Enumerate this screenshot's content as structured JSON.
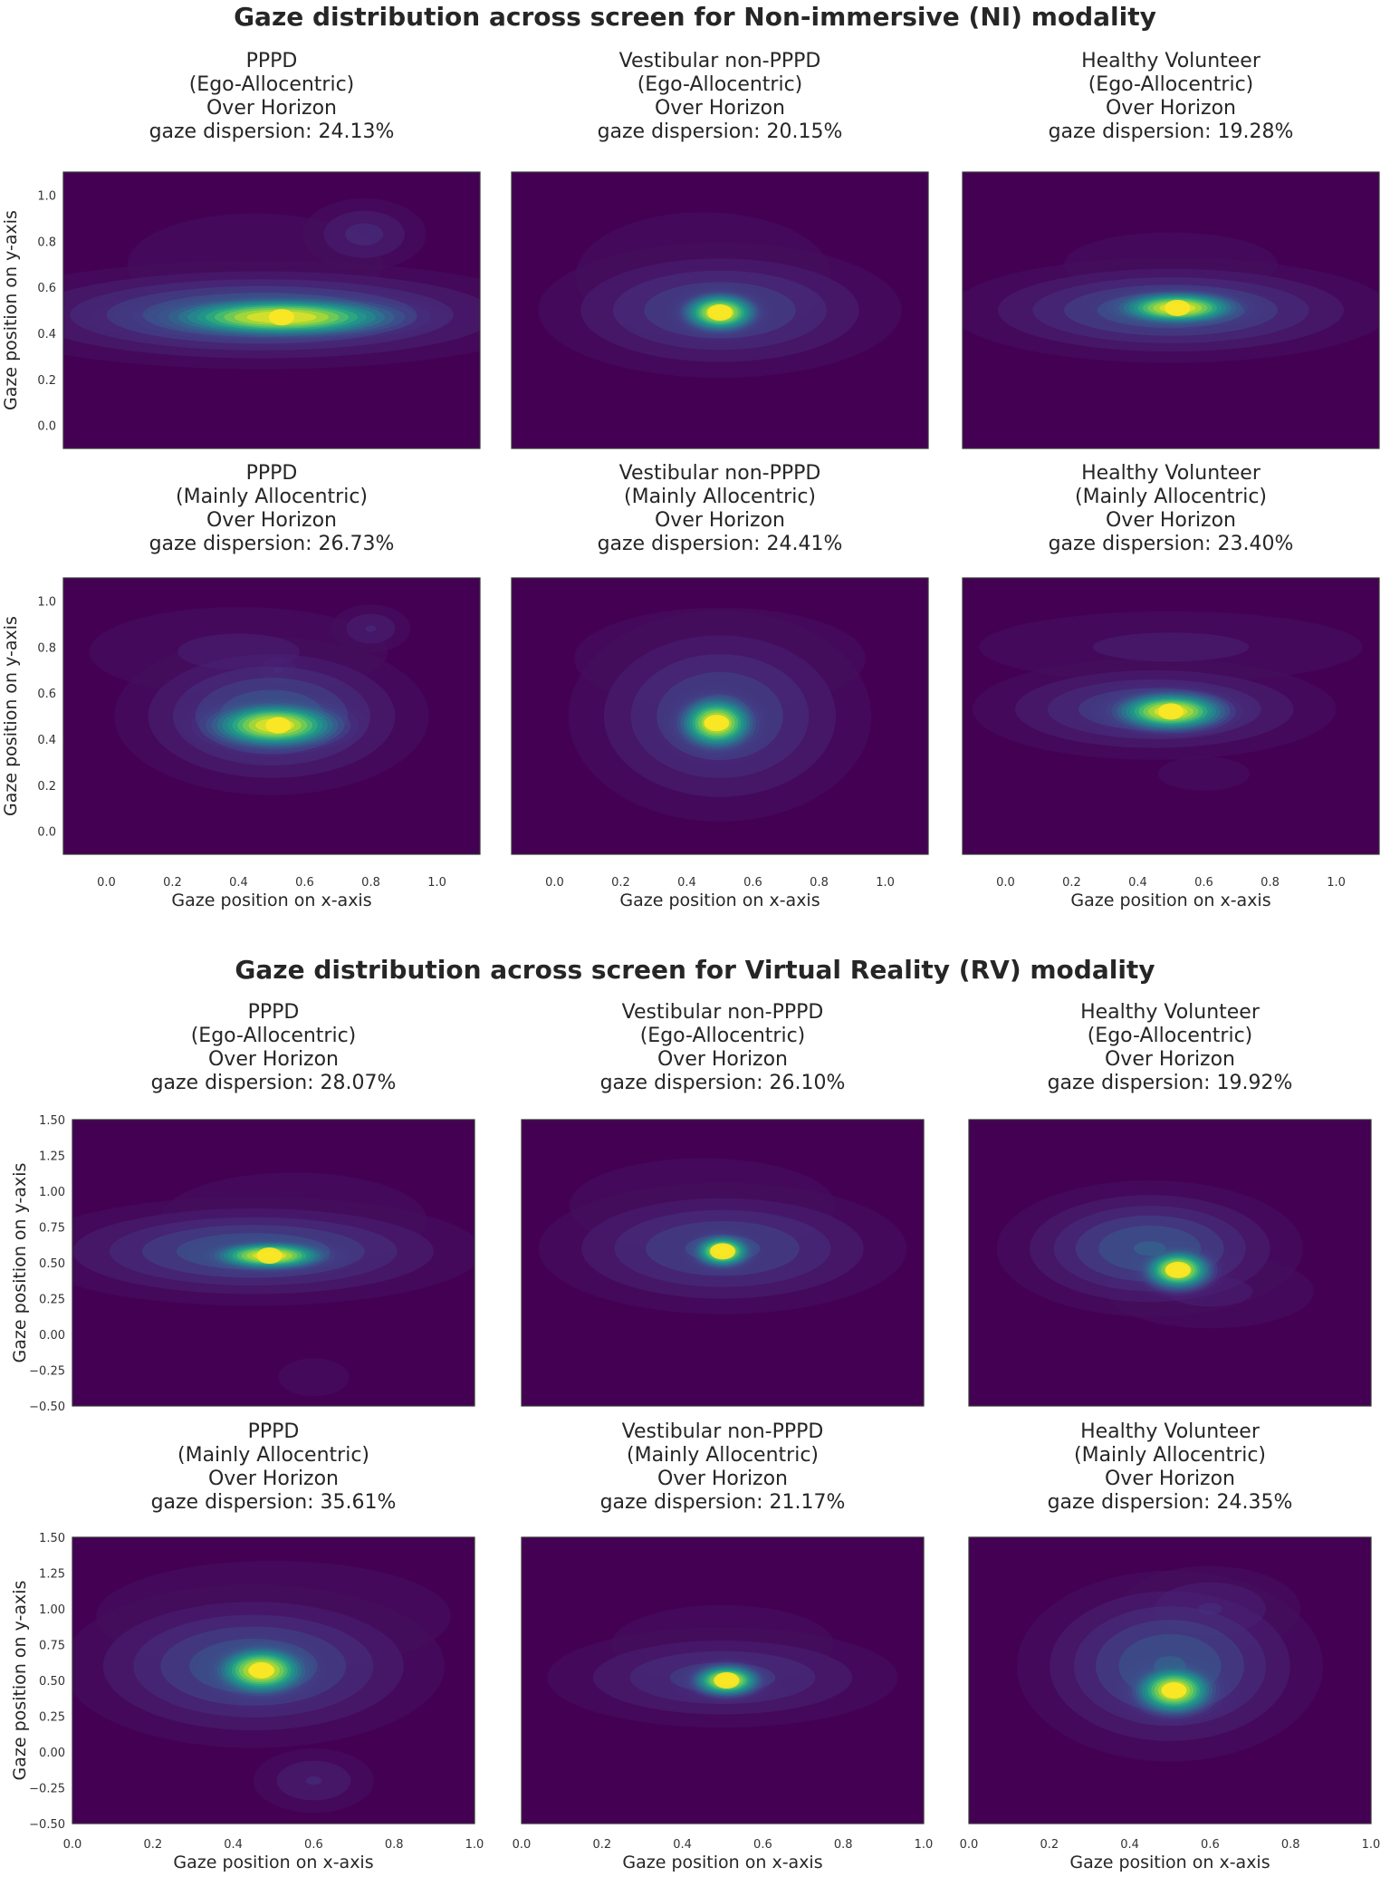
{
  "chart_data": [
    {
      "type": "heatmap",
      "title": "Gaze distribution across screen for Non-immersive (NI) modality",
      "xlabel": "Gaze position on x-axis",
      "ylabel": "Gaze position on y-axis",
      "xlim": [
        -0.13,
        1.13
      ],
      "ylim": [
        -0.1,
        1.1
      ],
      "xticks": [
        "0.0",
        "0.2",
        "0.4",
        "0.6",
        "0.8",
        "1.0"
      ],
      "xtick_values": [
        0,
        0.2,
        0.4,
        0.6,
        0.8,
        1.0
      ],
      "yticks": [
        "0.0",
        "0.2",
        "0.4",
        "0.6",
        "0.8",
        "1.0"
      ],
      "ytick_values": [
        0,
        0.2,
        0.4,
        0.6,
        0.8,
        1.0
      ],
      "colormap": "viridis",
      "panels": [
        {
          "group": "PPPD",
          "strategy": "(Ego-Allocentric)",
          "condition": "Over Horizon",
          "dispersion": "gaze dispersion: 24.13%",
          "dispersion_value": 24.13,
          "peak": [
            0.53,
            0.47
          ],
          "spread": [
            0.42,
            0.26
          ],
          "blobs": [
            [
              0.53,
              0.47,
              0.25,
              0.06,
              1.0
            ],
            [
              0.47,
              0.48,
              0.45,
              0.12,
              0.45
            ],
            [
              0.78,
              0.83,
              0.12,
              0.1,
              0.22
            ],
            [
              0.45,
              0.7,
              0.35,
              0.2,
              0.12
            ]
          ]
        },
        {
          "group": "Vestibular non-PPPD",
          "strategy": "(Ego-Allocentric)",
          "condition": "Over Horizon",
          "dispersion": "gaze dispersion: 20.15%",
          "dispersion_value": 20.15,
          "peak": [
            0.5,
            0.49
          ],
          "spread": [
            0.4,
            0.3
          ],
          "blobs": [
            [
              0.5,
              0.49,
              0.08,
              0.06,
              1.0
            ],
            [
              0.5,
              0.5,
              0.3,
              0.16,
              0.35
            ],
            [
              0.45,
              0.65,
              0.35,
              0.25,
              0.12
            ]
          ]
        },
        {
          "group": "Healthy Volunteer",
          "strategy": "(Ego-Allocentric)",
          "condition": "Over Horizon",
          "dispersion": "gaze dispersion: 19.28%",
          "dispersion_value": 19.28,
          "peak": [
            0.52,
            0.51
          ],
          "spread": [
            0.38,
            0.25
          ],
          "blobs": [
            [
              0.52,
              0.51,
              0.13,
              0.05,
              1.0
            ],
            [
              0.5,
              0.5,
              0.35,
              0.12,
              0.4
            ],
            [
              0.5,
              0.7,
              0.35,
              0.15,
              0.1
            ]
          ]
        },
        {
          "group": "PPPD",
          "strategy": "(Mainly Allocentric)",
          "condition": "Over Horizon",
          "dispersion": "gaze dispersion: 26.73%",
          "dispersion_value": 26.73,
          "peak": [
            0.52,
            0.46
          ],
          "spread": [
            0.4,
            0.3
          ],
          "blobs": [
            [
              0.51,
              0.46,
              0.14,
              0.07,
              1.0
            ],
            [
              0.5,
              0.5,
              0.25,
              0.18,
              0.4
            ],
            [
              0.8,
              0.88,
              0.08,
              0.07,
              0.2
            ],
            [
              0.4,
              0.78,
              0.35,
              0.15,
              0.15
            ],
            [
              0.52,
              0.7,
              0.06,
              0.06,
              0.2
            ]
          ]
        },
        {
          "group": "Vestibular non-PPPD",
          "strategy": "(Mainly Allocentric)",
          "condition": "Over Horizon",
          "dispersion": "gaze dispersion: 24.41%",
          "dispersion_value": 24.41,
          "peak": [
            0.49,
            0.47
          ],
          "spread": [
            0.4,
            0.3
          ],
          "blobs": [
            [
              0.49,
              0.47,
              0.08,
              0.08,
              1.0
            ],
            [
              0.5,
              0.5,
              0.25,
              0.25,
              0.35
            ],
            [
              0.5,
              0.75,
              0.4,
              0.2,
              0.12
            ]
          ]
        },
        {
          "group": "Healthy Volunteer",
          "strategy": "(Mainly Allocentric)",
          "condition": "Over Horizon",
          "dispersion": "gaze dispersion: 23.40%",
          "dispersion_value": 23.4,
          "peak": [
            0.5,
            0.52
          ],
          "spread": [
            0.45,
            0.3
          ],
          "blobs": [
            [
              0.5,
              0.52,
              0.12,
              0.06,
              1.0
            ],
            [
              0.45,
              0.53,
              0.3,
              0.12,
              0.35
            ],
            [
              0.5,
              0.8,
              0.45,
              0.12,
              0.15
            ],
            [
              0.6,
              0.25,
              0.15,
              0.08,
              0.1
            ]
          ]
        }
      ]
    },
    {
      "type": "heatmap",
      "title": "Gaze distribution across screen for Virtual Reality (RV) modality",
      "xlabel": "Gaze position on x-axis",
      "ylabel": "Gaze position on y-axis",
      "xlim": [
        0.0,
        1.0
      ],
      "ylim": [
        -0.5,
        1.5
      ],
      "xticks": [
        "0.0",
        "0.2",
        "0.4",
        "0.6",
        "0.8",
        "1.0"
      ],
      "xtick_values": [
        0,
        0.2,
        0.4,
        0.6,
        0.8,
        1.0
      ],
      "yticks": [
        "−0.50",
        "−0.25",
        "0.00",
        "0.25",
        "0.50",
        "0.75",
        "1.00",
        "1.25",
        "1.50"
      ],
      "ytick_values": [
        -0.5,
        -0.25,
        0,
        0.25,
        0.5,
        0.75,
        1.0,
        1.25,
        1.5
      ],
      "colormap": "viridis",
      "panels": [
        {
          "group": "PPPD",
          "strategy": "(Ego-Allocentric)",
          "condition": "Over Horizon",
          "dispersion": "gaze dispersion: 28.07%",
          "dispersion_value": 28.07,
          "peak": [
            0.49,
            0.55
          ],
          "spread": [
            0.4,
            0.35
          ],
          "blobs": [
            [
              0.49,
              0.55,
              0.1,
              0.07,
              1.0
            ],
            [
              0.45,
              0.58,
              0.3,
              0.2,
              0.4
            ],
            [
              0.55,
              0.8,
              0.3,
              0.3,
              0.12
            ],
            [
              0.6,
              -0.3,
              0.08,
              0.12,
              0.12
            ]
          ]
        },
        {
          "group": "Vestibular non-PPPD",
          "strategy": "(Ego-Allocentric)",
          "condition": "Over Horizon",
          "dispersion": "gaze dispersion: 26.10%",
          "dispersion_value": 26.1,
          "peak": [
            0.5,
            0.58
          ],
          "spread": [
            0.35,
            0.35
          ],
          "blobs": [
            [
              0.5,
              0.58,
              0.05,
              0.08,
              1.0
            ],
            [
              0.5,
              0.6,
              0.25,
              0.25,
              0.35
            ],
            [
              0.45,
              0.9,
              0.3,
              0.3,
              0.12
            ]
          ]
        },
        {
          "group": "Healthy Volunteer",
          "strategy": "(Ego-Allocentric)",
          "condition": "Over Horizon",
          "dispersion": "gaze dispersion: 19.92%",
          "dispersion_value": 19.92,
          "peak": [
            0.52,
            0.45
          ],
          "spread": [
            0.3,
            0.3
          ],
          "blobs": [
            [
              0.52,
              0.45,
              0.06,
              0.1,
              1.0
            ],
            [
              0.45,
              0.6,
              0.2,
              0.25,
              0.4
            ],
            [
              0.6,
              0.3,
              0.2,
              0.2,
              0.15
            ]
          ]
        },
        {
          "group": "PPPD",
          "strategy": "(Mainly Allocentric)",
          "condition": "Over Horizon",
          "dispersion": "gaze dispersion: 35.61%",
          "dispersion_value": 35.61,
          "peak": [
            0.47,
            0.57
          ],
          "spread": [
            0.45,
            0.45
          ],
          "blobs": [
            [
              0.47,
              0.57,
              0.08,
              0.12,
              1.0
            ],
            [
              0.45,
              0.6,
              0.25,
              0.3,
              0.4
            ],
            [
              0.6,
              -0.2,
              0.1,
              0.15,
              0.2
            ],
            [
              0.5,
              0.95,
              0.4,
              0.35,
              0.12
            ]
          ]
        },
        {
          "group": "Vestibular non-PPPD",
          "strategy": "(Mainly Allocentric)",
          "condition": "Over Horizon",
          "dispersion": "gaze dispersion: 21.17%",
          "dispersion_value": 21.17,
          "peak": [
            0.51,
            0.5
          ],
          "spread": [
            0.35,
            0.3
          ],
          "blobs": [
            [
              0.51,
              0.5,
              0.06,
              0.08,
              1.0
            ],
            [
              0.5,
              0.52,
              0.25,
              0.2,
              0.3
            ],
            [
              0.5,
              0.75,
              0.3,
              0.3,
              0.1
            ]
          ]
        },
        {
          "group": "Healthy Volunteer",
          "strategy": "(Mainly Allocentric)",
          "condition": "Over Horizon",
          "dispersion": "gaze dispersion: 24.35%",
          "dispersion_value": 24.35,
          "peak": [
            0.51,
            0.43
          ],
          "spread": [
            0.35,
            0.45
          ],
          "blobs": [
            [
              0.51,
              0.43,
              0.07,
              0.12,
              1.0
            ],
            [
              0.5,
              0.6,
              0.2,
              0.35,
              0.4
            ],
            [
              0.6,
              1.0,
              0.15,
              0.2,
              0.2
            ]
          ]
        }
      ]
    }
  ]
}
